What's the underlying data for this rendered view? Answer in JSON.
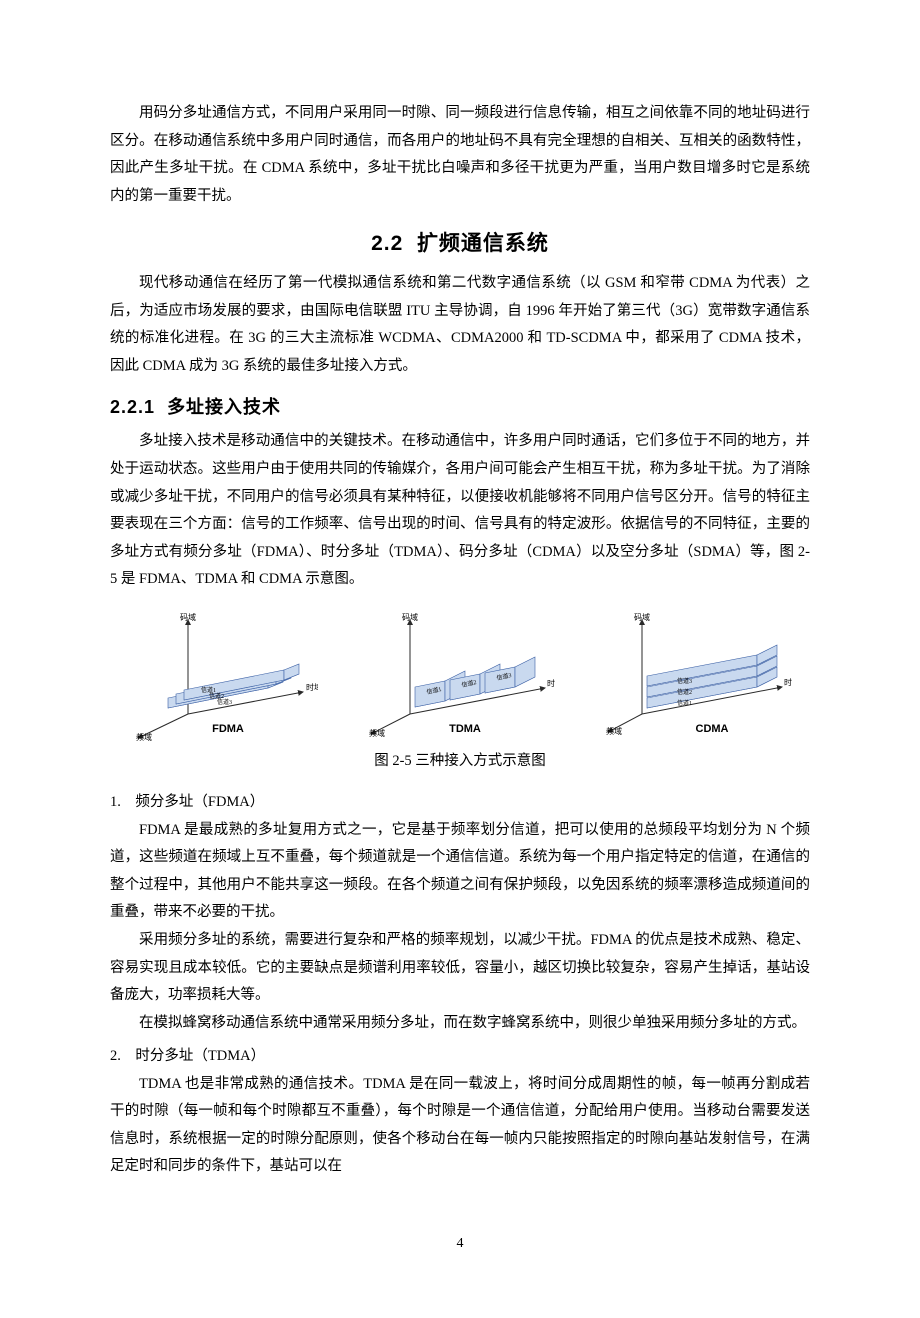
{
  "intro_para": "用码分多址通信方式，不同用户采用同一时隙、同一频段进行信息传输，相互之间依靠不同的地址码进行区分。在移动通信系统中多用户同时通信，而各用户的地址码不具有完全理想的自相关、互相关的函数特性，因此产生多址干扰。在 CDMA 系统中，多址干扰比白噪声和多径干扰更为严重，当用户数目增多时它是系统内的第一重要干扰。",
  "section": {
    "num": "2.2",
    "title": "扩频通信系统"
  },
  "section_para": "现代移动通信在经历了第一代模拟通信系统和第二代数字通信系统（以 GSM 和窄带 CDMA 为代表）之后，为适应市场发展的要求，由国际电信联盟 ITU 主导协调，自 1996 年开始了第三代（3G）宽带数字通信系统的标准化进程。在 3G 的三大主流标准 WCDMA、CDMA2000 和 TD-SCDMA 中，都采用了 CDMA 技术，因此 CDMA 成为 3G 系统的最佳多址接入方式。",
  "subsection": {
    "num": "2.2.1",
    "title": "多址接入技术"
  },
  "sub_para": "多址接入技术是移动通信中的关键技术。在移动通信中，许多用户同时通话，它们多位于不同的地方，并处于运动状态。这些用户由于使用共同的传输媒介，各用户间可能会产生相互干扰，称为多址干扰。为了消除或减少多址干扰，不同用户的信号必须具有某种特征，以便接收机能够将不同用户信号区分开。信号的特征主要表现在三个方面：信号的工作频率、信号出现的时间、信号具有的特定波形。依据信号的不同特征，主要的多址方式有频分多址（FDMA）、时分多址（TDMA）、码分多址（CDMA）以及空分多址（SDMA）等，图 2-5 是 FDMA、TDMA 和 CDMA 示意图。",
  "figure": {
    "caption": "图 2-5  三种接入方式示意图",
    "axes": {
      "code": "码域",
      "time": "时域",
      "freq": "频域"
    },
    "channels": {
      "c1": "信道1",
      "c2": "信道2",
      "c3": "信道3"
    },
    "labels": {
      "fdma": "FDMA",
      "tdma": "TDMA",
      "cdma": "CDMA"
    },
    "colors": {
      "slab_fill": "#c9d9ef",
      "slab_stroke": "#3a5fa4",
      "axis_color": "#2a2a2a",
      "label_color": "#000000",
      "axis_font": 8,
      "chan_font": 6,
      "label_font": 11
    }
  },
  "item1": {
    "head": "1.　频分多址（FDMA）",
    "p1": "FDMA 是最成熟的多址复用方式之一，它是基于频率划分信道，把可以使用的总频段平均划分为 N 个频道，这些频道在频域上互不重叠，每个频道就是一个通信信道。系统为每一个用户指定特定的信道，在通信的整个过程中，其他用户不能共享这一频段。在各个频道之间有保护频段，以免因系统的频率漂移造成频道间的重叠，带来不必要的干扰。",
    "p2": "采用频分多址的系统，需要进行复杂和严格的频率规划，以减少干扰。FDMA 的优点是技术成熟、稳定、容易实现且成本较低。它的主要缺点是频谱利用率较低，容量小，越区切换比较复杂，容易产生掉话，基站设备庞大，功率损耗大等。",
    "p3": "在模拟蜂窝移动通信系统中通常采用频分多址，而在数字蜂窝系统中，则很少单独采用频分多址的方式。"
  },
  "item2": {
    "head": "2.　时分多址（TDMA）",
    "p1": "TDMA 也是非常成熟的通信技术。TDMA 是在同一载波上，将时间分成周期性的帧，每一帧再分割成若干的时隙（每一帧和每个时隙都互不重叠），每个时隙是一个通信信道，分配给用户使用。当移动台需要发送信息时，系统根据一定的时隙分配原则，使各个移动台在每一帧内只能按照指定的时隙向基站发射信号，在满足定时和同步的条件下，基站可以在"
  },
  "page_number": "4"
}
